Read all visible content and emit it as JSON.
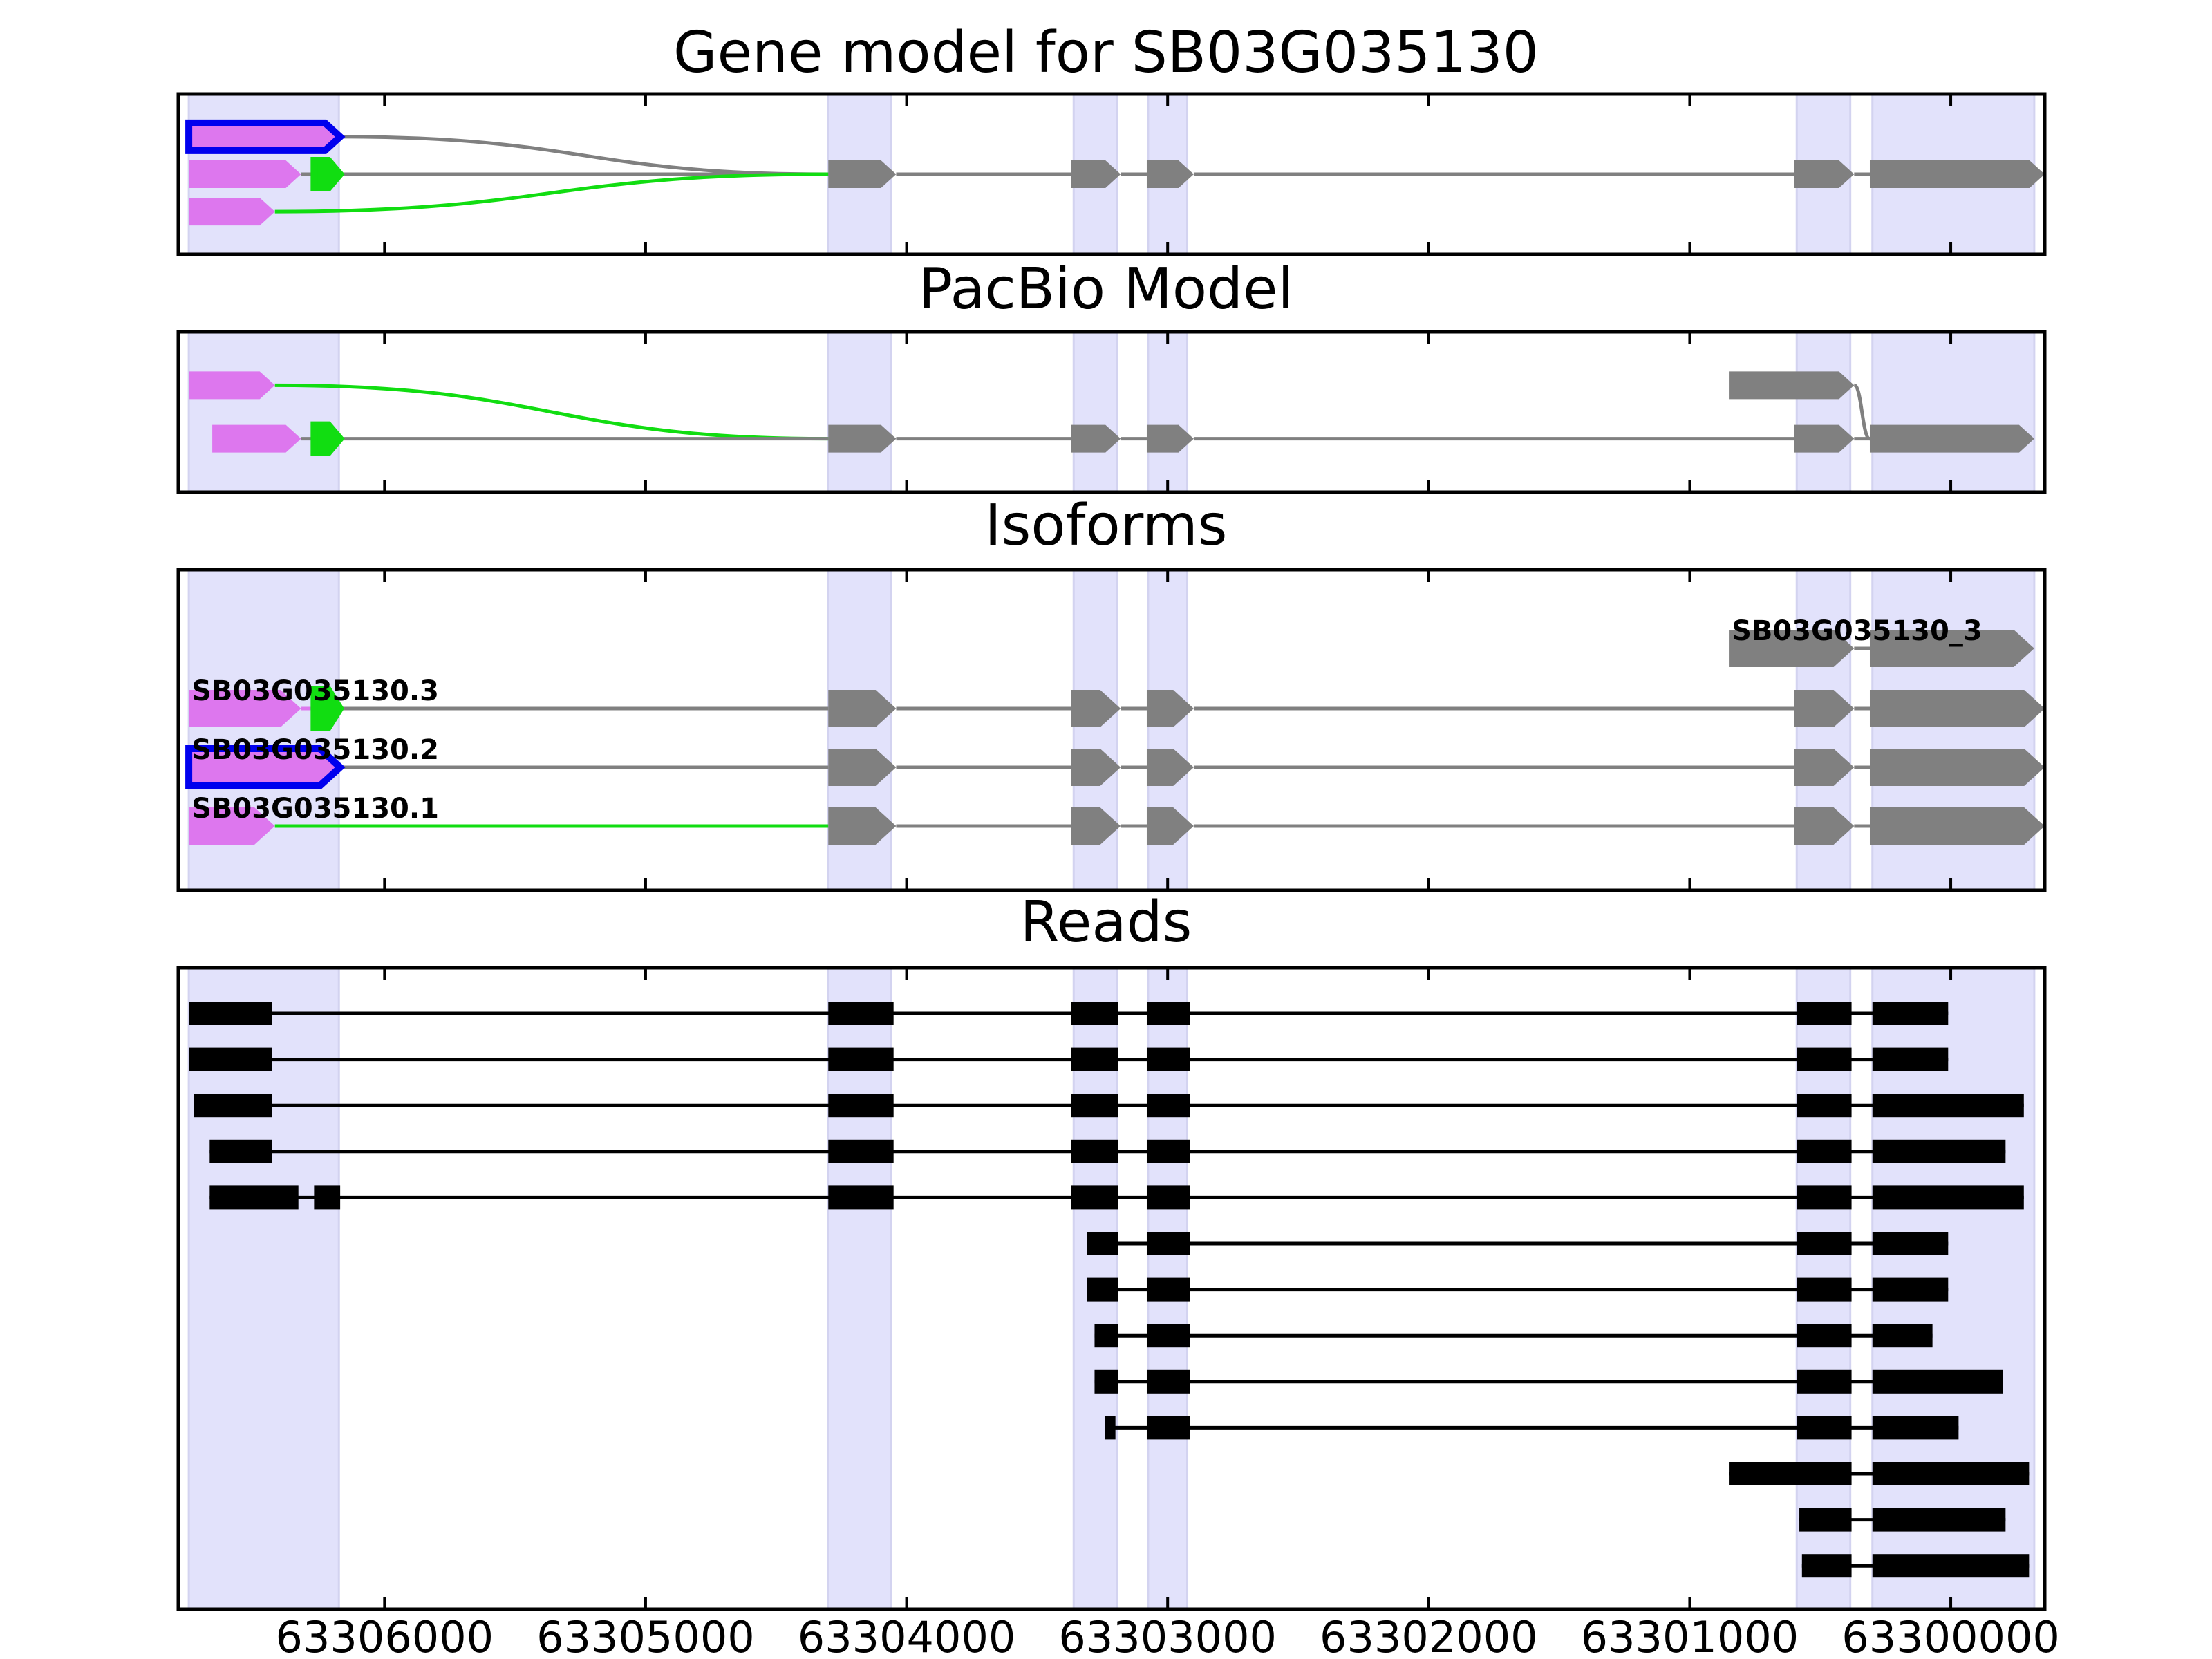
{
  "chart_data": {
    "type": "gene-structure",
    "title": "Gene model for SB03G035130",
    "xlim": [
      63306790,
      63299640
    ],
    "x_ticks": [
      63306000,
      63305000,
      63304000,
      63303000,
      63302000,
      63301000,
      63300000
    ],
    "x_tick_labels": [
      "63306000",
      "63305000",
      "63304000",
      "63303000",
      "63302000",
      "63301000",
      "63300000"
    ],
    "shaded_regions": [
      [
        63306750,
        63306175
      ],
      [
        63304300,
        63304060
      ],
      [
        63303360,
        63303195
      ],
      [
        63303075,
        63302925
      ],
      [
        63300590,
        63300385
      ],
      [
        63300300,
        63299680
      ]
    ],
    "colors": {
      "shade": "#e2e2fb",
      "gene_exon": "#808080",
      "utr_exon": "#dd77ee",
      "alt_exon": "#11dd11",
      "highlight_outline": "#0000ee",
      "intron_default": "#808080",
      "read": "#000000"
    },
    "panels": [
      {
        "title": "Gene model for SB03G035130",
        "type": "splice-graph",
        "nodes": [
          {
            "id": "u1",
            "start": 63306750,
            "end": 63306170,
            "row": 0.8,
            "color": "utr",
            "highlight": true
          },
          {
            "id": "u2",
            "start": 63306750,
            "end": 63306320,
            "row": 1.5,
            "color": "utr"
          },
          {
            "id": "g1",
            "start": 63306270,
            "end": 63306170,
            "row": 1.5,
            "color": "alt",
            "outline": true
          },
          {
            "id": "u3",
            "start": 63306750,
            "end": 63306420,
            "row": 2.2,
            "color": "utr"
          },
          {
            "id": "e1",
            "start": 63304300,
            "end": 63304040,
            "row": 1.5,
            "color": "gene"
          },
          {
            "id": "e2",
            "start": 63303370,
            "end": 63303180,
            "row": 1.5,
            "color": "gene"
          },
          {
            "id": "e3",
            "start": 63303080,
            "end": 63302900,
            "row": 1.5,
            "color": "gene"
          },
          {
            "id": "e4",
            "start": 63300600,
            "end": 63300370,
            "row": 1.5,
            "color": "gene"
          },
          {
            "id": "e5",
            "start": 63300310,
            "end": 63299640,
            "row": 1.5,
            "color": "gene"
          }
        ],
        "edges": [
          {
            "from": "u1",
            "to": "e1",
            "color": "gene"
          },
          {
            "from": "g1",
            "to": "e1",
            "color": "gene"
          },
          {
            "from": "u2",
            "to": "g1",
            "color": "gene"
          },
          {
            "from": "u3",
            "to": "e1",
            "color": "alt"
          },
          {
            "from": "e1",
            "to": "e2",
            "color": "gene"
          },
          {
            "from": "e2",
            "to": "e3",
            "color": "gene"
          },
          {
            "from": "e3",
            "to": "e4",
            "color": "gene"
          },
          {
            "from": "e4",
            "to": "e5",
            "color": "gene"
          }
        ]
      },
      {
        "title": "PacBio Model",
        "type": "splice-graph",
        "nodes": [
          {
            "id": "p_u1",
            "start": 63306750,
            "end": 63306420,
            "row": 1.0,
            "color": "utr"
          },
          {
            "id": "p_u2",
            "start": 63306660,
            "end": 63306320,
            "row": 2.0,
            "color": "utr"
          },
          {
            "id": "p_g1",
            "start": 63306270,
            "end": 63306170,
            "row": 2.0,
            "color": "alt",
            "outline": true
          },
          {
            "id": "p_e1",
            "start": 63304300,
            "end": 63304040,
            "row": 2.0,
            "color": "gene"
          },
          {
            "id": "p_e2",
            "start": 63303370,
            "end": 63303180,
            "row": 2.0,
            "color": "gene"
          },
          {
            "id": "p_e3",
            "start": 63303080,
            "end": 63302900,
            "row": 2.0,
            "color": "gene"
          },
          {
            "id": "p_top",
            "start": 63300850,
            "end": 63300370,
            "row": 1.0,
            "color": "gene"
          },
          {
            "id": "p_e4",
            "start": 63300600,
            "end": 63300370,
            "row": 2.0,
            "color": "gene"
          },
          {
            "id": "p_e5",
            "start": 63300310,
            "end": 63299680,
            "row": 2.0,
            "color": "gene"
          }
        ],
        "edges": [
          {
            "from": "p_u1",
            "to": "p_e1",
            "color": "alt"
          },
          {
            "from": "p_u2",
            "to": "p_g1",
            "color": "gene"
          },
          {
            "from": "p_g1",
            "to": "p_e1",
            "color": "gene"
          },
          {
            "from": "p_e1",
            "to": "p_e2",
            "color": "gene"
          },
          {
            "from": "p_e2",
            "to": "p_e3",
            "color": "gene"
          },
          {
            "from": "p_e3",
            "to": "p_e4",
            "color": "gene"
          },
          {
            "from": "p_e4",
            "to": "p_e5",
            "color": "gene"
          },
          {
            "from": "p_top",
            "to": "p_e5",
            "color": "gene"
          }
        ]
      },
      {
        "title": "Isoforms",
        "type": "isoforms",
        "isoforms": [
          {
            "name": "SB03G035130_3",
            "exons": [
              {
                "start": 63300850,
                "end": 63300370,
                "color": "gene"
              },
              {
                "start": 63300310,
                "end": 63299680,
                "color": "gene"
              }
            ],
            "introns": [
              {
                "color": "gene"
              }
            ]
          },
          {
            "name": "SB03G035130.3",
            "exons": [
              {
                "start": 63306750,
                "end": 63306320,
                "color": "utr"
              },
              {
                "start": 63306270,
                "end": 63306170,
                "color": "alt",
                "outline": true
              },
              {
                "start": 63304300,
                "end": 63304040,
                "color": "gene"
              },
              {
                "start": 63303370,
                "end": 63303180,
                "color": "gene"
              },
              {
                "start": 63303080,
                "end": 63302900,
                "color": "gene"
              },
              {
                "start": 63300600,
                "end": 63300370,
                "color": "gene"
              },
              {
                "start": 63300310,
                "end": 63299640,
                "color": "gene"
              }
            ],
            "introns": [
              {
                "color": "utr"
              },
              {
                "color": "gene"
              },
              {
                "color": "gene"
              },
              {
                "color": "gene"
              },
              {
                "color": "gene"
              },
              {
                "color": "gene"
              }
            ]
          },
          {
            "name": "SB03G035130.2",
            "exons": [
              {
                "start": 63306750,
                "end": 63306170,
                "color": "utr",
                "highlight": true
              },
              {
                "start": 63304300,
                "end": 63304040,
                "color": "gene"
              },
              {
                "start": 63303370,
                "end": 63303180,
                "color": "gene"
              },
              {
                "start": 63303080,
                "end": 63302900,
                "color": "gene"
              },
              {
                "start": 63300600,
                "end": 63300370,
                "color": "gene"
              },
              {
                "start": 63300310,
                "end": 63299640,
                "color": "gene"
              }
            ],
            "introns": [
              {
                "color": "gene"
              },
              {
                "color": "gene"
              },
              {
                "color": "gene"
              },
              {
                "color": "gene"
              },
              {
                "color": "gene"
              }
            ]
          },
          {
            "name": "SB03G035130.1",
            "exons": [
              {
                "start": 63306750,
                "end": 63306420,
                "color": "utr"
              },
              {
                "start": 63304300,
                "end": 63304040,
                "color": "gene"
              },
              {
                "start": 63303370,
                "end": 63303180,
                "color": "gene"
              },
              {
                "start": 63303080,
                "end": 63302900,
                "color": "gene"
              },
              {
                "start": 63300600,
                "end": 63300370,
                "color": "gene"
              },
              {
                "start": 63300310,
                "end": 63299640,
                "color": "gene"
              }
            ],
            "introns": [
              {
                "color": "alt"
              },
              {
                "color": "gene"
              },
              {
                "color": "gene"
              },
              {
                "color": "gene"
              },
              {
                "color": "gene"
              }
            ]
          }
        ]
      },
      {
        "title": "Reads",
        "type": "reads",
        "reads": [
          [
            [
              63306750,
              63306430
            ],
            [
              63304300,
              63304050
            ],
            [
              63303370,
              63303190
            ],
            [
              63303080,
              63302915
            ],
            [
              63300590,
              63300380
            ],
            [
              63300300,
              63300010
            ]
          ],
          [
            [
              63306750,
              63306430
            ],
            [
              63304300,
              63304050
            ],
            [
              63303370,
              63303190
            ],
            [
              63303080,
              63302915
            ],
            [
              63300590,
              63300380
            ],
            [
              63300300,
              63300010
            ]
          ],
          [
            [
              63306730,
              63306430
            ],
            [
              63304300,
              63304050
            ],
            [
              63303370,
              63303190
            ],
            [
              63303080,
              63302915
            ],
            [
              63300590,
              63300380
            ],
            [
              63300300,
              63299720
            ]
          ],
          [
            [
              63306670,
              63306430
            ],
            [
              63304300,
              63304050
            ],
            [
              63303370,
              63303190
            ],
            [
              63303080,
              63302915
            ],
            [
              63300590,
              63300380
            ],
            [
              63300300,
              63299790
            ]
          ],
          [
            [
              63306670,
              63306330
            ],
            [
              63306270,
              63306170
            ],
            [
              63304300,
              63304050
            ],
            [
              63303370,
              63303190
            ],
            [
              63303080,
              63302915
            ],
            [
              63300590,
              63300380
            ],
            [
              63300300,
              63299720
            ]
          ],
          [
            [
              63303310,
              63303190
            ],
            [
              63303080,
              63302915
            ],
            [
              63300590,
              63300380
            ],
            [
              63300300,
              63300010
            ]
          ],
          [
            [
              63303310,
              63303190
            ],
            [
              63303080,
              63302915
            ],
            [
              63300590,
              63300380
            ],
            [
              63300300,
              63300010
            ]
          ],
          [
            [
              63303280,
              63303190
            ],
            [
              63303080,
              63302915
            ],
            [
              63300590,
              63300380
            ],
            [
              63300300,
              63300070
            ]
          ],
          [
            [
              63303280,
              63303190
            ],
            [
              63303080,
              63302915
            ],
            [
              63300590,
              63300380
            ],
            [
              63300300,
              63299800
            ]
          ],
          [
            [
              63303240,
              63303200
            ],
            [
              63303080,
              63302915
            ],
            [
              63300590,
              63300380
            ],
            [
              63300300,
              63299970
            ]
          ],
          [
            [
              63300850,
              63300380
            ],
            [
              63300300,
              63299700
            ]
          ],
          [
            [
              63300580,
              63300380
            ],
            [
              63300300,
              63299790
            ]
          ],
          [
            [
              63300570,
              63300380
            ],
            [
              63300300,
              63299700
            ]
          ]
        ]
      }
    ]
  }
}
